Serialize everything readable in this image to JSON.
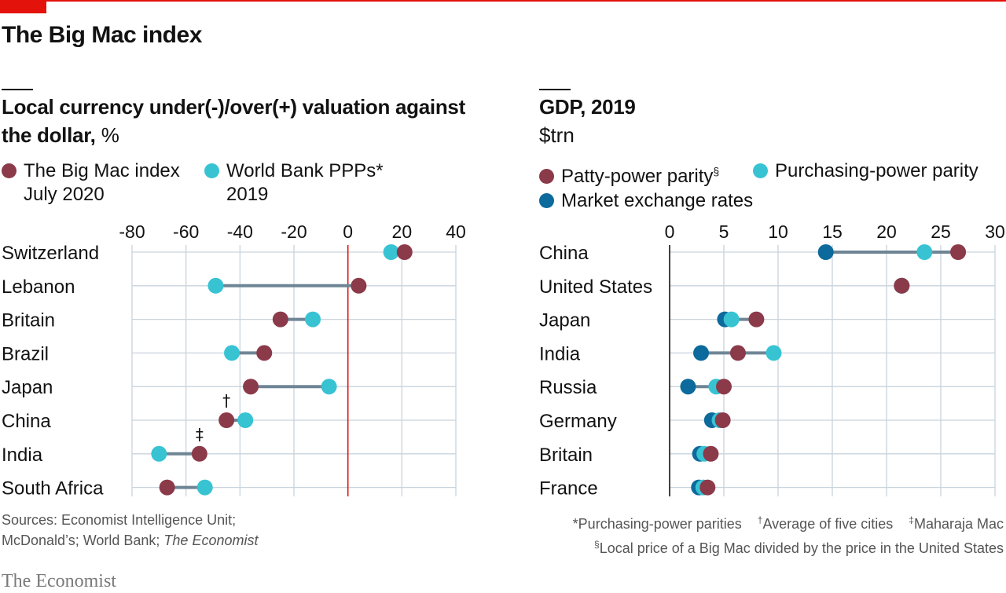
{
  "header": {
    "title": "The Big Mac index"
  },
  "left_panel": {
    "title_bold": "Local currency under(-)/over(+) valuation against the dollar,",
    "unit": "%",
    "legend": [
      {
        "label": "The Big Mac index",
        "sub": "July 2020",
        "color": "#8b3a4a"
      },
      {
        "label": "World Bank PPPs*",
        "sub": "2019",
        "color": "#38c3d3"
      }
    ],
    "footer_line1": "Sources: Economist Intelligence Unit;",
    "footer_line2a": "McDonald’s; World Bank; ",
    "footer_line2b": "The Economist"
  },
  "right_panel": {
    "title_bold": "GDP, 2019",
    "unit": "$trn",
    "legend": [
      {
        "label": "Patty-power parity",
        "sup": "§",
        "color": "#8b3a4a"
      },
      {
        "label": "Purchasing-power parity",
        "color": "#38c3d3"
      },
      {
        "label": "Market exchange rates",
        "color": "#0d6a9c"
      }
    ],
    "footnote1": "*Purchasing-power parities",
    "footnote2_sym": "†",
    "footnote2": "Average of five cities",
    "footnote3_sym": "‡",
    "footnote3": "Maharaja Mac",
    "footnote4_sym": "§",
    "footnote4": "Local price of a Big Mac divided by the price in the United States"
  },
  "brand": "The Economist",
  "chart_data": [
    {
      "type": "scatter",
      "title": "Local currency under(-)/over(+) valuation against the dollar, %",
      "categories": [
        "Switzerland",
        "Lebanon",
        "Britain",
        "Brazil",
        "Japan",
        "China",
        "India",
        "South Africa"
      ],
      "series": [
        {
          "name": "The Big Mac index",
          "values": [
            21,
            4,
            -25,
            -31,
            -36,
            -45,
            -55,
            -67
          ],
          "color": "#8b3a4a"
        },
        {
          "name": "World Bank PPPs*",
          "values": [
            16,
            -49,
            -13,
            -43,
            -7,
            -38,
            -70,
            -53
          ],
          "color": "#38c3d3"
        }
      ],
      "annotations": [
        {
          "category": "China",
          "text": "†"
        },
        {
          "category": "India",
          "text": "‡"
        }
      ],
      "xticks": [
        -80,
        -60,
        -40,
        -20,
        0,
        20,
        40
      ],
      "xlim": [
        -80,
        40
      ],
      "reference_line": 0,
      "reference_color": "#e3120b",
      "grid": true
    },
    {
      "type": "scatter",
      "title": "GDP, 2019",
      "unit": "$trn",
      "categories": [
        "China",
        "United States",
        "Japan",
        "India",
        "Russia",
        "Germany",
        "Britain",
        "France"
      ],
      "series": [
        {
          "name": "Patty-power parity§",
          "values": [
            26.6,
            21.4,
            8.0,
            6.3,
            5.0,
            4.9,
            3.8,
            3.5
          ],
          "color": "#8b3a4a"
        },
        {
          "name": "Purchasing-power parity",
          "values": [
            23.5,
            21.4,
            5.7,
            9.6,
            4.3,
            4.6,
            3.2,
            3.1
          ],
          "color": "#38c3d3"
        },
        {
          "name": "Market exchange rates",
          "values": [
            14.4,
            21.4,
            5.1,
            2.9,
            1.7,
            3.9,
            2.8,
            2.7
          ],
          "color": "#0d6a9c"
        }
      ],
      "xticks": [
        0,
        5,
        10,
        15,
        20,
        25,
        30
      ],
      "xlim": [
        0,
        30
      ],
      "grid": true
    }
  ]
}
